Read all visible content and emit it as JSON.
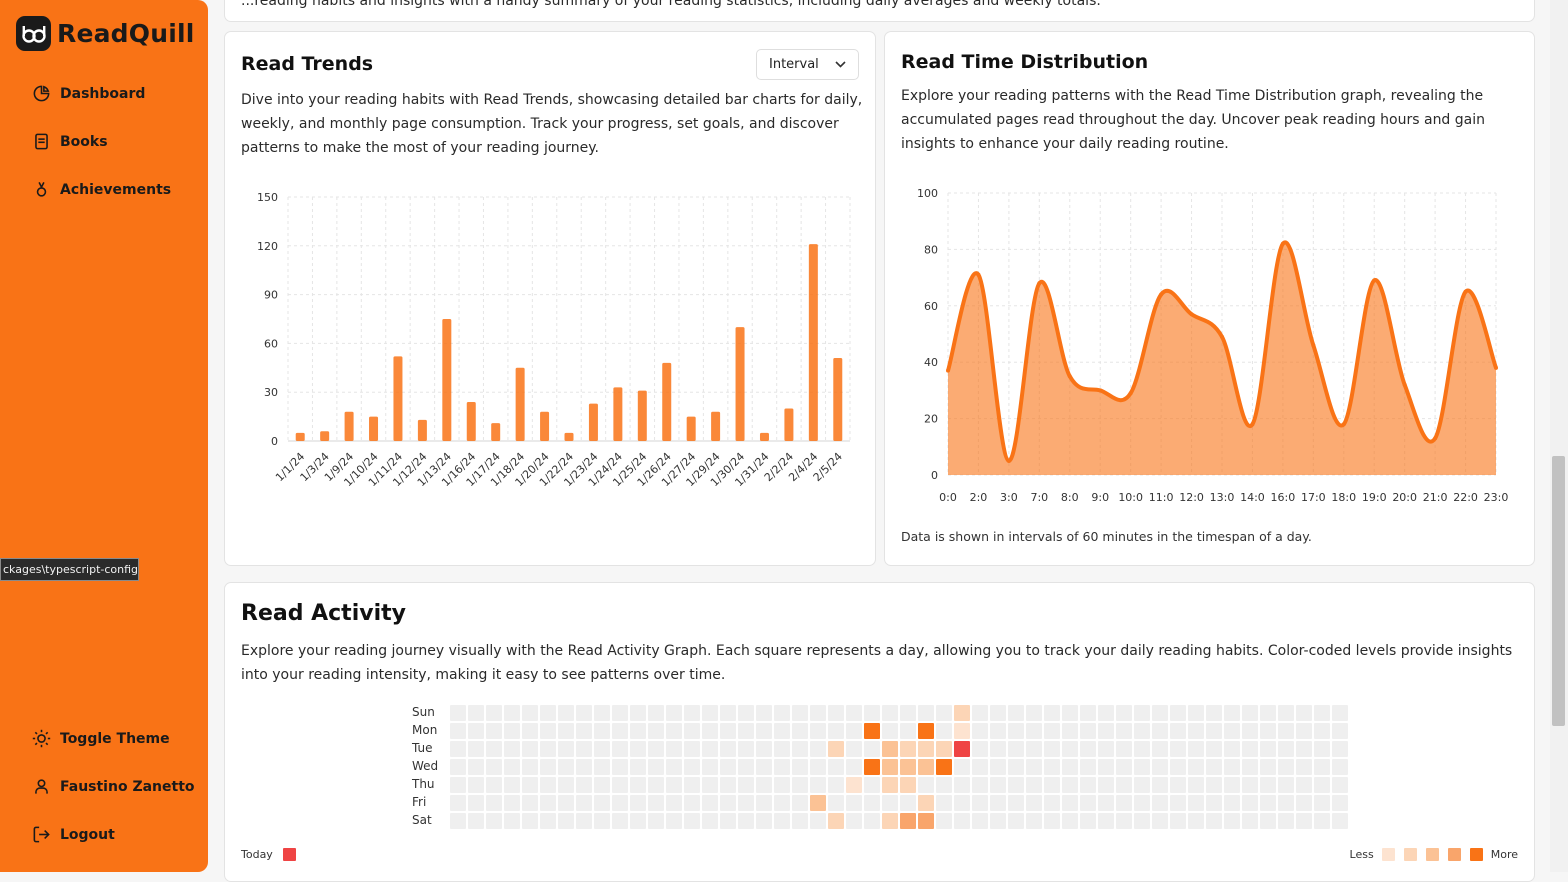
{
  "app": {
    "name": "ReadQuill",
    "logo_glyph": "bd"
  },
  "nav": [
    {
      "label": "Dashboard",
      "icon": "pie-chart-icon"
    },
    {
      "label": "Books",
      "icon": "book-icon"
    },
    {
      "label": "Achievements",
      "icon": "award-icon"
    }
  ],
  "bottom_nav": {
    "theme_label": "Toggle Theme",
    "user_label": "Faustino Zanetto",
    "logout_label": "Logout"
  },
  "tooltip": "ckages\\typescript-config",
  "top_card_text": "...reading habits and insights with a handy summary of your reading statistics, including daily averages and weekly totals.",
  "read_trends": {
    "title": "Read Trends",
    "interval_label": "Interval",
    "description": "Dive into your reading habits with Read Trends, showcasing detailed bar charts for daily, weekly, and monthly page consumption. Track your progress, set goals, and discover patterns to make the most of your reading journey."
  },
  "read_time": {
    "title": "Read Time Distribution",
    "description": "Explore your reading patterns with the Read Time Distribution graph, revealing the accumulated pages read throughout the day. Uncover peak reading hours and gain insights to enhance your daily reading routine.",
    "footnote": "Data is shown in intervals of 60 minutes in the timespan of a day."
  },
  "read_activity": {
    "title": "Read Activity",
    "description": "Explore your reading journey visually with the Read Activity Graph. Each square represents a day, allowing you to track your daily reading habits. Color-coded levels provide insights into your reading intensity, making it easy to see patterns over time.",
    "days": [
      "Sun",
      "Mon",
      "Tue",
      "Wed",
      "Thu",
      "Fri",
      "Sat"
    ],
    "weeks": 50,
    "today_label": "Today",
    "less_label": "Less",
    "more_label": "More",
    "levels": [
      "#ececec",
      "#fde3d0",
      "#fcd5b6",
      "#fbc295",
      "#f9a56b",
      "#f97316"
    ],
    "today_color": "#ef4444",
    "cells": [
      {
        "week": 20,
        "day": 5,
        "level": 3
      },
      {
        "week": 21,
        "day": 2,
        "level": 2
      },
      {
        "week": 21,
        "day": 6,
        "level": 2
      },
      {
        "week": 22,
        "day": 4,
        "level": 1
      },
      {
        "week": 23,
        "day": 1,
        "level": 5
      },
      {
        "week": 23,
        "day": 3,
        "level": 5
      },
      {
        "week": 24,
        "day": 2,
        "level": 3
      },
      {
        "week": 24,
        "day": 3,
        "level": 3
      },
      {
        "week": 24,
        "day": 4,
        "level": 2
      },
      {
        "week": 24,
        "day": 6,
        "level": 2
      },
      {
        "week": 25,
        "day": 2,
        "level": 2
      },
      {
        "week": 25,
        "day": 3,
        "level": 3
      },
      {
        "week": 25,
        "day": 4,
        "level": 2
      },
      {
        "week": 25,
        "day": 6,
        "level": 4
      },
      {
        "week": 26,
        "day": 1,
        "level": 5
      },
      {
        "week": 26,
        "day": 2,
        "level": 2
      },
      {
        "week": 26,
        "day": 3,
        "level": 3
      },
      {
        "week": 26,
        "day": 5,
        "level": 2
      },
      {
        "week": 26,
        "day": 6,
        "level": 4
      },
      {
        "week": 27,
        "day": 2,
        "level": 2
      },
      {
        "week": 27,
        "day": 3,
        "level": 5
      },
      {
        "week": 28,
        "day": 0,
        "level": 2
      },
      {
        "week": 28,
        "day": 1,
        "level": 1
      },
      {
        "week": 28,
        "day": 2,
        "today": true
      }
    ]
  },
  "chart_data": [
    {
      "type": "bar",
      "title": "Read Trends",
      "categories": [
        "1/1/24",
        "1/3/24",
        "1/9/24",
        "1/10/24",
        "1/11/24",
        "1/12/24",
        "1/13/24",
        "1/16/24",
        "1/17/24",
        "1/18/24",
        "1/20/24",
        "1/22/24",
        "1/23/24",
        "1/24/24",
        "1/25/24",
        "1/26/24",
        "1/27/24",
        "1/29/24",
        "1/30/24",
        "1/31/24",
        "2/2/24",
        "2/4/24",
        "2/5/24"
      ],
      "values": [
        5,
        6,
        18,
        15,
        52,
        13,
        75,
        24,
        11,
        45,
        18,
        5,
        23,
        33,
        31,
        48,
        15,
        18,
        70,
        5,
        20,
        121,
        51
      ],
      "yticks": [
        0,
        30,
        60,
        90,
        120,
        150
      ],
      "ylim": [
        0,
        150
      ],
      "color": "#f97316"
    },
    {
      "type": "area",
      "title": "Read Time Distribution",
      "x": [
        "0:0",
        "2:0",
        "3:0",
        "7:0",
        "8:0",
        "9:0",
        "10:0",
        "11:0",
        "12:0",
        "13:0",
        "14:0",
        "16:0",
        "17:0",
        "18:0",
        "19:0",
        "20:0",
        "21:0",
        "22:0",
        "23:0"
      ],
      "values": [
        37,
        71,
        5,
        68,
        35,
        30,
        29,
        64,
        57,
        49,
        18,
        82,
        46,
        18,
        69,
        32,
        13,
        65,
        38
      ],
      "yticks": [
        0,
        20,
        40,
        60,
        80,
        100
      ],
      "ylim": [
        0,
        100
      ],
      "color": "#f97316"
    }
  ]
}
